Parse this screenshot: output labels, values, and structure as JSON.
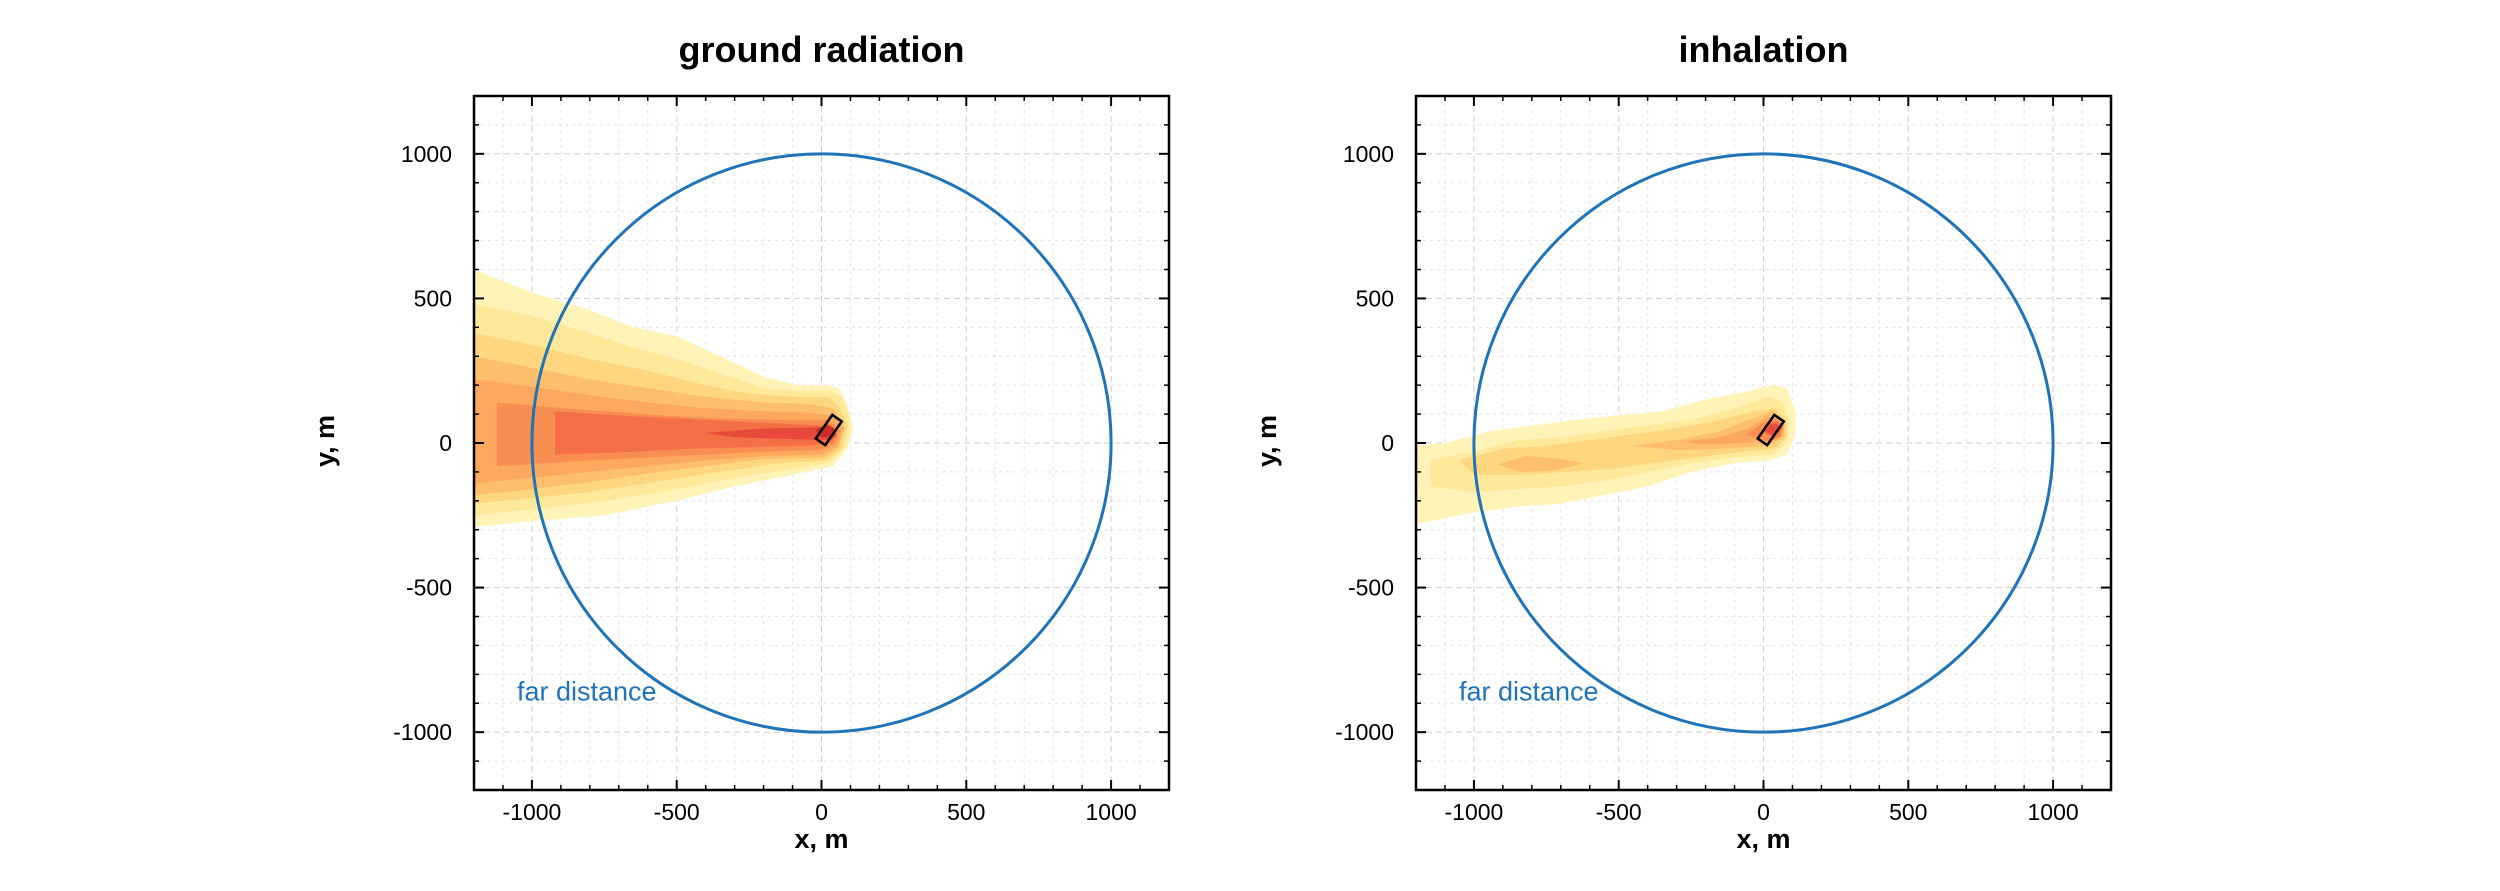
{
  "colors": {
    "circle": "#1f73b8",
    "annotation": "#1f73b8",
    "grid": "#d6d6d6",
    "contour_levels": [
      "#fff3b8",
      "#fee89a",
      "#fed67e",
      "#fdbf6b",
      "#fca85e",
      "#f98e52",
      "#f46f45",
      "#e8493a",
      "#cc2b2b"
    ]
  },
  "chart_data": [
    {
      "type": "contour",
      "title": "ground radiation",
      "xlabel": "x, m",
      "ylabel": "y, m",
      "xlim": [
        -1200,
        1200
      ],
      "ylim": [
        -1200,
        1200
      ],
      "xticks": [
        -1000,
        -500,
        0,
        500,
        1000
      ],
      "yticks": [
        -1000,
        -500,
        0,
        500,
        1000
      ],
      "xtick_labels": [
        "-1000",
        "-500",
        "0",
        "500",
        "1000"
      ],
      "ytick_labels": [
        "-1000",
        "-500",
        "0",
        "500",
        "1000"
      ],
      "grid": true,
      "circle": {
        "center": [
          0,
          0
        ],
        "radius": 1000
      },
      "annotation": {
        "text": "far distance",
        "at": [
          -1100,
          -900
        ]
      },
      "source_marker": {
        "center": [
          25,
          45
        ],
        "width": 40,
        "height": 100,
        "rotation_deg": -35
      },
      "contours": [
        {
          "level": 0,
          "polygon": [
            [
              -1200,
              600
            ],
            [
              -1000,
              520
            ],
            [
              -800,
              460
            ],
            [
              -650,
              400
            ],
            [
              -500,
              370
            ],
            [
              -350,
              300
            ],
            [
              -200,
              230
            ],
            [
              -80,
              200
            ],
            [
              20,
              200
            ],
            [
              60,
              190
            ],
            [
              90,
              130
            ],
            [
              110,
              50
            ],
            [
              90,
              -20
            ],
            [
              40,
              -80
            ],
            [
              -100,
              -110
            ],
            [
              -300,
              -150
            ],
            [
              -500,
              -200
            ],
            [
              -750,
              -250
            ],
            [
              -1000,
              -270
            ],
            [
              -1200,
              -290
            ]
          ]
        },
        {
          "level": 1,
          "polygon": [
            [
              -1200,
              480
            ],
            [
              -1000,
              440
            ],
            [
              -800,
              380
            ],
            [
              -650,
              330
            ],
            [
              -500,
              290
            ],
            [
              -350,
              240
            ],
            [
              -200,
              190
            ],
            [
              -70,
              180
            ],
            [
              30,
              180
            ],
            [
              70,
              160
            ],
            [
              100,
              80
            ],
            [
              85,
              -10
            ],
            [
              30,
              -70
            ],
            [
              -100,
              -90
            ],
            [
              -300,
              -120
            ],
            [
              -500,
              -160
            ],
            [
              -750,
              -200
            ],
            [
              -1000,
              -230
            ],
            [
              -1200,
              -250
            ]
          ]
        },
        {
          "level": 2,
          "polygon": [
            [
              -1200,
              380
            ],
            [
              -1000,
              340
            ],
            [
              -800,
              290
            ],
            [
              -600,
              250
            ],
            [
              -400,
              200
            ],
            [
              -250,
              170
            ],
            [
              -100,
              160
            ],
            [
              20,
              160
            ],
            [
              60,
              130
            ],
            [
              90,
              60
            ],
            [
              70,
              -20
            ],
            [
              20,
              -60
            ],
            [
              -150,
              -70
            ],
            [
              -350,
              -100
            ],
            [
              -550,
              -130
            ],
            [
              -800,
              -170
            ],
            [
              -1000,
              -190
            ],
            [
              -1200,
              -210
            ]
          ]
        },
        {
          "level": 3,
          "polygon": [
            [
              -1200,
              300
            ],
            [
              -1000,
              260
            ],
            [
              -800,
              220
            ],
            [
              -600,
              190
            ],
            [
              -400,
              160
            ],
            [
              -200,
              140
            ],
            [
              -50,
              135
            ],
            [
              40,
              120
            ],
            [
              80,
              55
            ],
            [
              60,
              -15
            ],
            [
              10,
              -50
            ],
            [
              -200,
              -55
            ],
            [
              -400,
              -80
            ],
            [
              -600,
              -105
            ],
            [
              -800,
              -135
            ],
            [
              -1000,
              -160
            ],
            [
              -1200,
              -180
            ]
          ]
        },
        {
          "level": 4,
          "polygon": [
            [
              -1200,
              220
            ],
            [
              -1000,
              195
            ],
            [
              -800,
              165
            ],
            [
              -600,
              140
            ],
            [
              -400,
              120
            ],
            [
              -200,
              110
            ],
            [
              -50,
              105
            ],
            [
              40,
              95
            ],
            [
              75,
              50
            ],
            [
              55,
              -10
            ],
            [
              0,
              -40
            ],
            [
              -200,
              -45
            ],
            [
              -400,
              -60
            ],
            [
              -600,
              -80
            ],
            [
              -800,
              -100
            ],
            [
              -1000,
              -120
            ],
            [
              -1200,
              -140
            ]
          ]
        },
        {
          "level": 5,
          "polygon": [
            [
              -1120,
              140
            ],
            [
              -950,
              125
            ],
            [
              -750,
              110
            ],
            [
              -550,
              95
            ],
            [
              -350,
              85
            ],
            [
              -150,
              80
            ],
            [
              20,
              80
            ],
            [
              65,
              45
            ],
            [
              45,
              -5
            ],
            [
              -10,
              -25
            ],
            [
              -200,
              -30
            ],
            [
              -400,
              -40
            ],
            [
              -600,
              -50
            ],
            [
              -800,
              -60
            ],
            [
              -950,
              -70
            ],
            [
              -1120,
              -80
            ]
          ]
        },
        {
          "level": 6,
          "polygon": [
            [
              -920,
              110
            ],
            [
              -700,
              95
            ],
            [
              -500,
              85
            ],
            [
              -300,
              75
            ],
            [
              -100,
              65
            ],
            [
              30,
              60
            ],
            [
              55,
              30
            ],
            [
              35,
              0
            ],
            [
              -50,
              -10
            ],
            [
              -250,
              -15
            ],
            [
              -450,
              -20
            ],
            [
              -650,
              -30
            ],
            [
              -920,
              -40
            ]
          ]
        },
        {
          "level": 7,
          "polygon": [
            [
              -400,
              35
            ],
            [
              -200,
              50
            ],
            [
              0,
              55
            ],
            [
              40,
              45
            ],
            [
              50,
              25
            ],
            [
              30,
              10
            ],
            [
              -150,
              15
            ],
            [
              -300,
              20
            ]
          ]
        },
        {
          "level": 8,
          "polygon": [
            [
              -20,
              45
            ],
            [
              20,
              65
            ],
            [
              45,
              50
            ],
            [
              40,
              20
            ],
            [
              0,
              20
            ]
          ]
        }
      ]
    },
    {
      "type": "contour",
      "title": "inhalation",
      "xlabel": "x, m",
      "ylabel": "y, m",
      "xlim": [
        -1200,
        1200
      ],
      "ylim": [
        -1200,
        1200
      ],
      "xticks": [
        -1000,
        -500,
        0,
        500,
        1000
      ],
      "yticks": [
        -1000,
        -500,
        0,
        500,
        1000
      ],
      "xtick_labels": [
        "-1000",
        "-500",
        "0",
        "500",
        "1000"
      ],
      "ytick_labels": [
        "-1000",
        "-500",
        "0",
        "500",
        "1000"
      ],
      "grid": true,
      "circle": {
        "center": [
          0,
          0
        ],
        "radius": 1000
      },
      "annotation": {
        "text": "far distance",
        "at": [
          -1100,
          -900
        ]
      },
      "source_marker": {
        "center": [
          25,
          45
        ],
        "width": 40,
        "height": 100,
        "rotation_deg": -35
      },
      "contours": [
        {
          "level": 0,
          "polygon": [
            [
              -1200,
              -10
            ],
            [
              -1100,
              0
            ],
            [
              -950,
              40
            ],
            [
              -800,
              60
            ],
            [
              -650,
              80
            ],
            [
              -500,
              95
            ],
            [
              -350,
              110
            ],
            [
              -200,
              150
            ],
            [
              -50,
              180
            ],
            [
              30,
              200
            ],
            [
              80,
              190
            ],
            [
              110,
              110
            ],
            [
              110,
              30
            ],
            [
              80,
              -40
            ],
            [
              20,
              -60
            ],
            [
              -100,
              -70
            ],
            [
              -250,
              -100
            ],
            [
              -400,
              -150
            ],
            [
              -550,
              -180
            ],
            [
              -700,
              -210
            ],
            [
              -850,
              -220
            ],
            [
              -1000,
              -240
            ],
            [
              -1200,
              -280
            ]
          ]
        },
        {
          "level": 1,
          "polygon": [
            [
              -1150,
              -60
            ],
            [
              -1000,
              -30
            ],
            [
              -850,
              10
            ],
            [
              -700,
              20
            ],
            [
              -550,
              40
            ],
            [
              -400,
              60
            ],
            [
              -250,
              80
            ],
            [
              -100,
              120
            ],
            [
              20,
              160
            ],
            [
              70,
              140
            ],
            [
              90,
              70
            ],
            [
              80,
              0
            ],
            [
              30,
              -40
            ],
            [
              -100,
              -50
            ],
            [
              -250,
              -70
            ],
            [
              -400,
              -100
            ],
            [
              -550,
              -130
            ],
            [
              -700,
              -150
            ],
            [
              -850,
              -160
            ],
            [
              -1000,
              -170
            ],
            [
              -1150,
              -150
            ]
          ]
        },
        {
          "level": 2,
          "polygon": [
            [
              -1050,
              -60
            ],
            [
              -900,
              -20
            ],
            [
              -750,
              -10
            ],
            [
              -600,
              10
            ],
            [
              -450,
              30
            ],
            [
              -300,
              50
            ],
            [
              -150,
              80
            ],
            [
              -30,
              110
            ],
            [
              40,
              120
            ],
            [
              80,
              80
            ],
            [
              80,
              20
            ],
            [
              40,
              -20
            ],
            [
              -80,
              -30
            ],
            [
              -230,
              -50
            ],
            [
              -380,
              -70
            ],
            [
              -530,
              -90
            ],
            [
              -680,
              -100
            ],
            [
              -830,
              -110
            ],
            [
              -1000,
              -110
            ]
          ]
        },
        {
          "level": 3,
          "polygon": [
            [
              -920,
              -75
            ],
            [
              -820,
              -45
            ],
            [
              -700,
              -55
            ],
            [
              -620,
              -70
            ],
            [
              -720,
              -95
            ],
            [
              -840,
              -100
            ]
          ]
        },
        {
          "level": 3,
          "polygon": [
            [
              -450,
              -10
            ],
            [
              -300,
              10
            ],
            [
              -150,
              40
            ],
            [
              -50,
              80
            ],
            [
              30,
              110
            ],
            [
              75,
              75
            ],
            [
              70,
              20
            ],
            [
              20,
              -10
            ],
            [
              -150,
              -20
            ],
            [
              -300,
              -25
            ]
          ]
        },
        {
          "level": 4,
          "polygon": [
            [
              -280,
              5
            ],
            [
              -150,
              20
            ],
            [
              -50,
              50
            ],
            [
              10,
              90
            ],
            [
              55,
              90
            ],
            [
              70,
              50
            ],
            [
              50,
              10
            ],
            [
              -80,
              0
            ],
            [
              -200,
              -5
            ]
          ]
        },
        {
          "level": 5,
          "polygon": [
            [
              -60,
              30
            ],
            [
              0,
              70
            ],
            [
              40,
              85
            ],
            [
              70,
              60
            ],
            [
              60,
              20
            ],
            [
              10,
              5
            ]
          ]
        },
        {
          "level": 6,
          "polygon": [
            [
              -10,
              35
            ],
            [
              20,
              70
            ],
            [
              50,
              75
            ],
            [
              65,
              50
            ],
            [
              45,
              20
            ]
          ]
        },
        {
          "level": 7,
          "polygon": [
            [
              5,
              40
            ],
            [
              25,
              65
            ],
            [
              50,
              65
            ],
            [
              55,
              40
            ],
            [
              35,
              25
            ]
          ]
        }
      ]
    }
  ]
}
